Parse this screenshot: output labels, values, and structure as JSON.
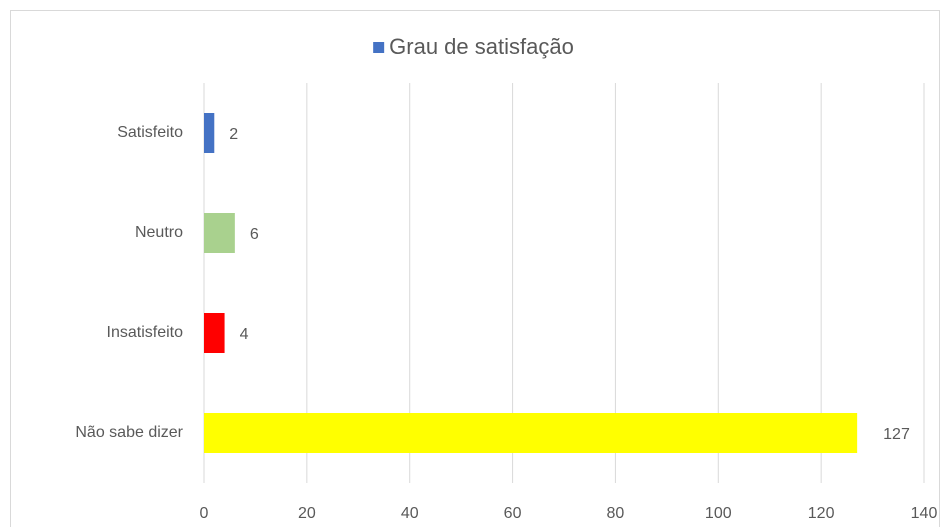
{
  "chart_data": {
    "type": "bar",
    "orientation": "horizontal",
    "categories": [
      "Satisfeito",
      "Neutro",
      "Insatisfeito",
      "Não sabe dizer"
    ],
    "series": [
      {
        "name": "Grau de satisfação",
        "color": "#4472c4",
        "values": [
          2,
          6,
          4,
          127
        ],
        "point_colors": [
          "#4472c4",
          "#a9d18e",
          "#ff0000",
          "#ffff00"
        ]
      }
    ],
    "xlim": [
      0,
      140
    ],
    "xticks": [
      0,
      20,
      40,
      60,
      80,
      100,
      120,
      140
    ],
    "grid": true,
    "legend": "top"
  }
}
